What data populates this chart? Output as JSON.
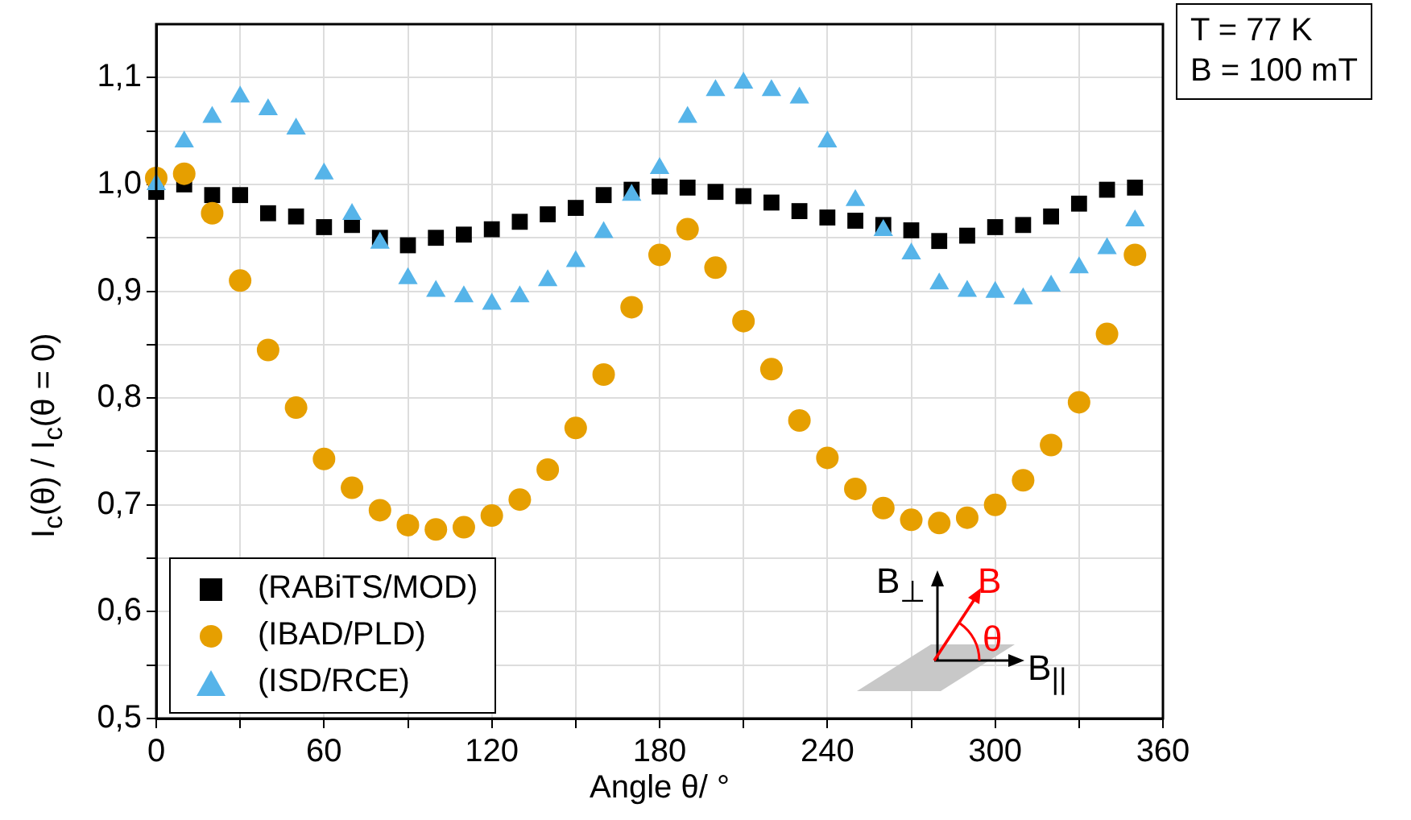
{
  "chart_data": {
    "type": "scatter",
    "xlabel": "Angle θ/ °",
    "ylabel": "I$_{c}$(θ) / I$_{c}$(θ = 0)",
    "x": [
      0,
      10,
      20,
      30,
      40,
      50,
      60,
      70,
      80,
      90,
      100,
      110,
      120,
      130,
      140,
      150,
      160,
      170,
      180,
      190,
      200,
      210,
      220,
      230,
      240,
      250,
      260,
      270,
      280,
      290,
      300,
      310,
      320,
      330,
      340,
      350
    ],
    "series": [
      {
        "name": "(RABiTS/MOD)",
        "color": "#000000",
        "marker": "square",
        "values": [
          0.993,
          1.0,
          0.99,
          0.99,
          0.973,
          0.97,
          0.96,
          0.962,
          0.95,
          0.943,
          0.95,
          0.953,
          0.958,
          0.965,
          0.972,
          0.978,
          0.99,
          0.995,
          0.998,
          0.997,
          0.993,
          0.989,
          0.983,
          0.975,
          0.969,
          0.966,
          0.962,
          0.957,
          0.947,
          0.952,
          0.96,
          0.962,
          0.97,
          0.982,
          0.995,
          0.997
        ]
      },
      {
        "name": "(IBAD/PLD)",
        "color": "#e69f00",
        "marker": "circle",
        "values": [
          1.006,
          1.01,
          0.973,
          0.91,
          0.845,
          0.791,
          0.743,
          0.716,
          0.695,
          0.681,
          0.677,
          0.679,
          0.69,
          0.705,
          0.733,
          0.772,
          0.822,
          0.885,
          0.934,
          0.958,
          0.922,
          0.872,
          0.827,
          0.779,
          0.744,
          0.715,
          0.697,
          0.686,
          0.683,
          0.688,
          0.7,
          0.723,
          0.756,
          0.796,
          0.86,
          0.934
        ]
      },
      {
        "name": "(ISD/RCE)",
        "color": "#56b4e9",
        "marker": "triangle",
        "values": [
          1.0,
          1.04,
          1.063,
          1.082,
          1.07,
          1.052,
          1.01,
          0.972,
          0.945,
          0.912,
          0.9,
          0.895,
          0.888,
          0.895,
          0.91,
          0.928,
          0.955,
          0.99,
          1.015,
          1.063,
          1.088,
          1.095,
          1.088,
          1.081,
          1.04,
          0.985,
          0.957,
          0.935,
          0.907,
          0.9,
          0.899,
          0.893,
          0.905,
          0.922,
          0.94,
          0.966
        ]
      }
    ],
    "xlim": [
      0,
      360
    ],
    "xticks": [
      0,
      {
        "value": 30,
        "label": null
      },
      60,
      {
        "value": 90,
        "label": null
      },
      120,
      {
        "value": 150,
        "label": null
      },
      180,
      {
        "value": 210,
        "label": null
      },
      240,
      {
        "value": 270,
        "label": null
      },
      300,
      {
        "value": 330,
        "label": null
      },
      360
    ],
    "ylim": [
      0.5,
      1.15
    ],
    "yticks": [
      {
        "value": 0.5,
        "label": "0,5"
      },
      {
        "value": 0.55,
        "label": null
      },
      {
        "value": 0.6,
        "label": "0,6"
      },
      {
        "value": 0.65,
        "label": null
      },
      {
        "value": 0.7,
        "label": "0,7"
      },
      {
        "value": 0.75,
        "label": null
      },
      {
        "value": 0.8,
        "label": "0,8"
      },
      {
        "value": 0.85,
        "label": null
      },
      {
        "value": 0.9,
        "label": "0,9"
      },
      {
        "value": 0.95,
        "label": null
      },
      {
        "value": 1.0,
        "label": "1,0"
      },
      {
        "value": 1.05,
        "label": null
      },
      {
        "value": 1.1,
        "label": "1,1"
      }
    ],
    "grid": true,
    "legend": "bottom left",
    "annotations": [
      "T = 77 K",
      "B = 100 mT",
      "B$_{⊥}$",
      "B",
      "θ",
      "B$_{||}$"
    ]
  }
}
